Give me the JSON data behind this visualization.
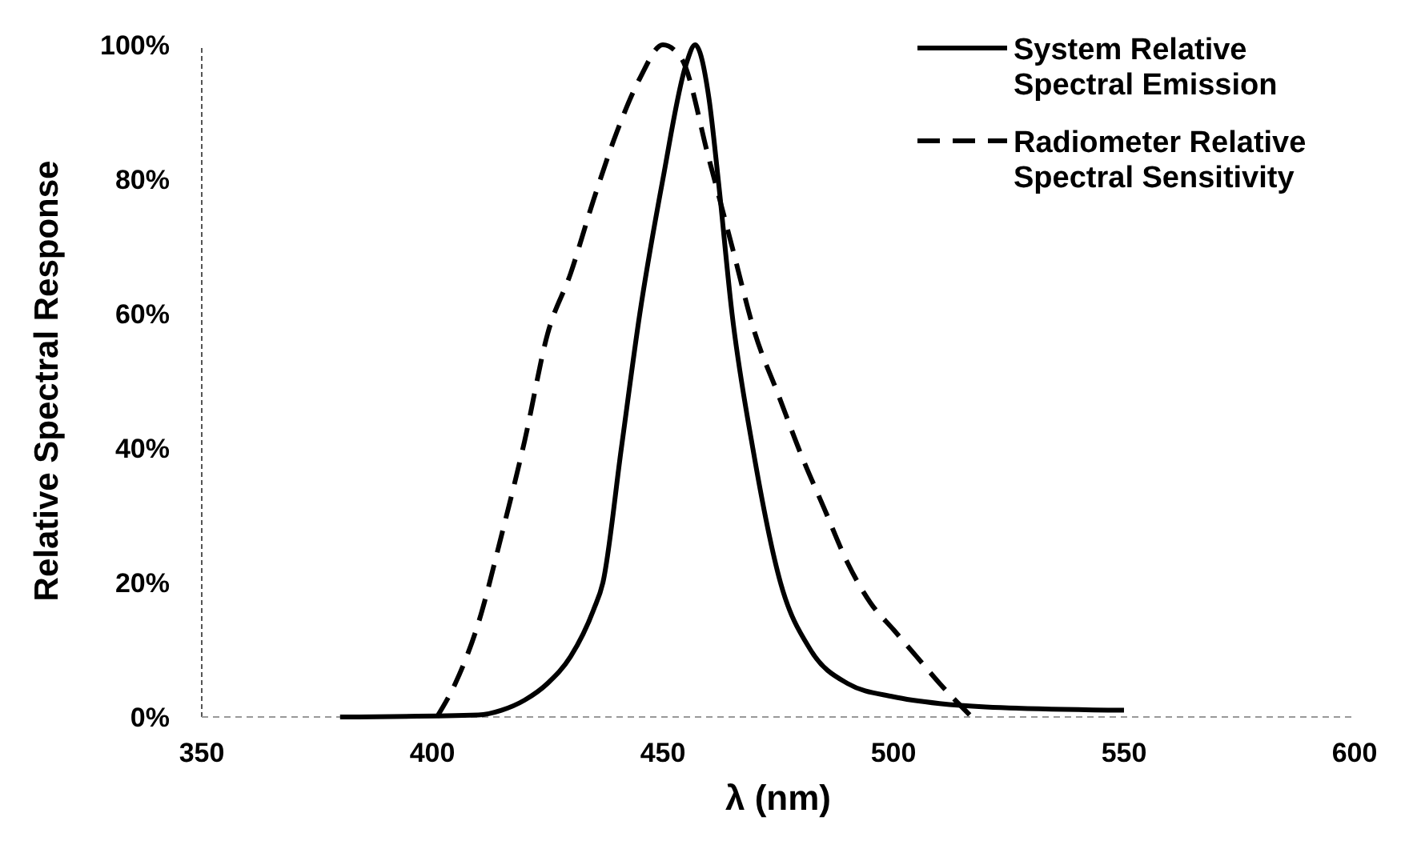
{
  "chart_data": {
    "type": "line",
    "xlabel": "λ (nm)",
    "ylabel": "Relative Spectral Response",
    "xlim": [
      350,
      600
    ],
    "xticks": [
      350,
      400,
      450,
      500,
      550,
      600
    ],
    "ylim": [
      0,
      100
    ],
    "yticks": [
      {
        "value": 0,
        "label": "0%"
      },
      {
        "value": 20,
        "label": "20%"
      },
      {
        "value": 40,
        "label": "40%"
      },
      {
        "value": 60,
        "label": "60%"
      },
      {
        "value": 80,
        "label": "80%"
      },
      {
        "value": 100,
        "label": "100%"
      }
    ],
    "legend": "top right",
    "grid": false,
    "marker": "none",
    "series": [
      {
        "name": "System Relative Spectral Emission",
        "color": "#000000",
        "line_style": "solid",
        "x": [
          380,
          410,
          415,
          420,
          425,
          430,
          435,
          437,
          441,
          445,
          450,
          455,
          457,
          460,
          462,
          465,
          469.5,
          475.5,
          482,
          490,
          500,
          510,
          520,
          550
        ],
        "values": [
          0,
          0.3,
          1,
          2.5,
          5,
          9,
          16,
          20,
          40,
          60,
          80,
          97,
          100,
          92,
          80,
          60,
          40,
          20,
          10,
          5,
          3,
          2,
          1.5,
          1
        ]
      },
      {
        "name": "Radiometer Relative Spectral Sensitivity",
        "color": "#000000",
        "line_style": "dashed",
        "x": [
          401,
          405,
          410,
          415,
          420,
          425,
          430,
          435,
          440,
          445,
          450,
          454,
          460,
          465,
          470,
          475,
          480,
          485,
          490,
          495,
          500,
          505,
          510,
          517
        ],
        "values": [
          0,
          5,
          14,
          27,
          41,
          57,
          66,
          77,
          87,
          95,
          100,
          98,
          83,
          70,
          57,
          48,
          39,
          31,
          23,
          17,
          13,
          9,
          5,
          0
        ]
      }
    ]
  }
}
